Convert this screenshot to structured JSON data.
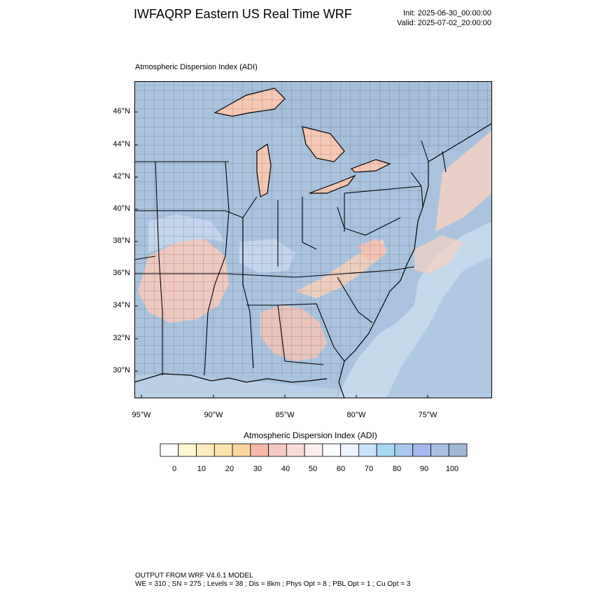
{
  "header": {
    "title": "IWFAQRP Eastern US Real Time WRF",
    "init": "Init: 2025-06-30_00:00:00",
    "valid": "Valid: 2025-07-02_20:00:00"
  },
  "map": {
    "subtitle": "Atmospheric Dispersion Index   (ADI)",
    "lat_labels": [
      "46°N",
      "44°N",
      "42°N",
      "40°N",
      "38°N",
      "36°N",
      "34°N",
      "32°N",
      "30°N"
    ],
    "lon_labels": [
      "95°W",
      "90°W",
      "85°W",
      "80°W",
      "75°W"
    ],
    "colors": {
      "high_adi": "#a9c3de",
      "mid_adi": "#c9daf0",
      "low_adi": "#f6c9bd",
      "very_low_adi": "#fbd6b5",
      "ocean_light": "#c8dced",
      "lake_high": "#f7c8b4"
    }
  },
  "colorbar": {
    "title": "Atmospheric Dispersion Index  (ADI)",
    "labels": [
      "0",
      "10",
      "20",
      "30",
      "40",
      "50",
      "60",
      "70",
      "80",
      "90",
      "100"
    ],
    "colors": [
      "#ffffff",
      "#fff8d0",
      "#ffecc0",
      "#fde3b0",
      "#fbd5a0",
      "#f8b8a8",
      "#f6c8c4",
      "#f9dcd8",
      "#fdeeee",
      "#ffffff",
      "#eef4ff",
      "#c8e4f8",
      "#a8d8f4",
      "#a8c8f0",
      "#a4b8ec",
      "#a8c0e4",
      "#a0b8d8"
    ]
  },
  "footer": {
    "line1": "OUTPUT FROM WRF V4.6.1 MODEL",
    "line2": "WE = 310 ; SN = 275 ; Levels = 38 ; Dis = 8km ; Phys Opt = 8 ; PBL Opt = 1 ; Cu Opt = 3"
  }
}
